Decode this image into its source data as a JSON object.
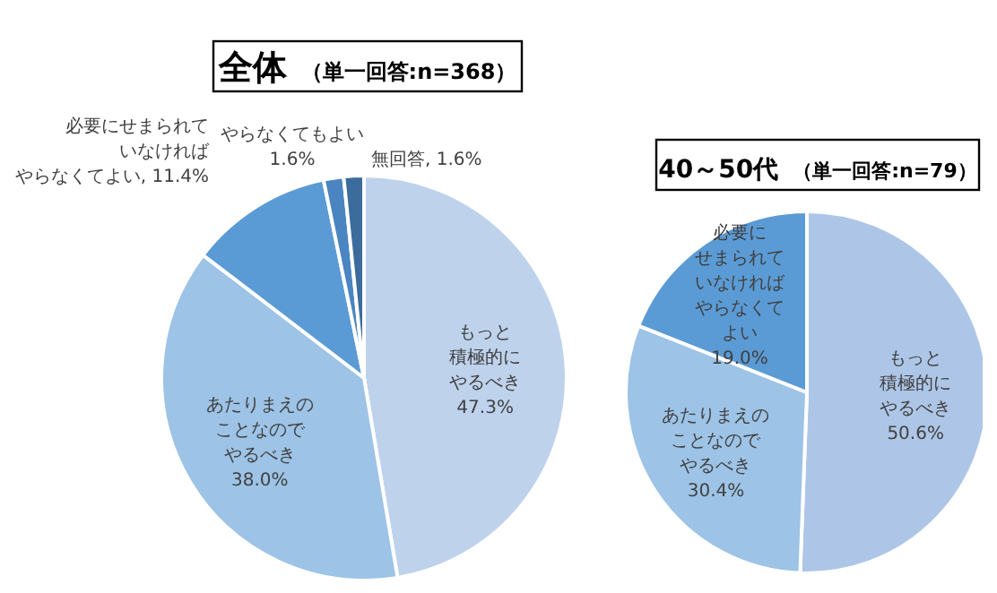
{
  "chart_data": [
    {
      "type": "pie",
      "title": "全体",
      "subtitle": "（単一回答:n=368）",
      "categories": [
        "もっと積極的にやるべき",
        "あたりまえのことなのでやるべき",
        "必要にせまられていなければやらなくてよい",
        "やらなくてもよい",
        "無回答"
      ],
      "values": [
        47.3,
        38.0,
        11.4,
        1.6,
        1.6
      ],
      "value_labels": [
        "47.3%",
        "38.0%",
        "11.4%",
        "1.6%",
        "1.6%"
      ],
      "colors": [
        "#bed2ec",
        "#9dc3e6",
        "#5b9bd5",
        "#4a85c2",
        "#3b6c9c"
      ]
    },
    {
      "type": "pie",
      "title": "40～50代",
      "subtitle": "（単一回答:n=79）",
      "categories": [
        "もっと積極的にやるべき",
        "あたりまえのことなのでやるべき",
        "必要にせまられていなければやらなくてよい"
      ],
      "values": [
        50.6,
        30.4,
        19.0
      ],
      "value_labels": [
        "50.6%",
        "30.4%",
        "19.0%"
      ],
      "colors": [
        "#adc6e7",
        "#9dc3e6",
        "#5b9bd5"
      ]
    }
  ]
}
